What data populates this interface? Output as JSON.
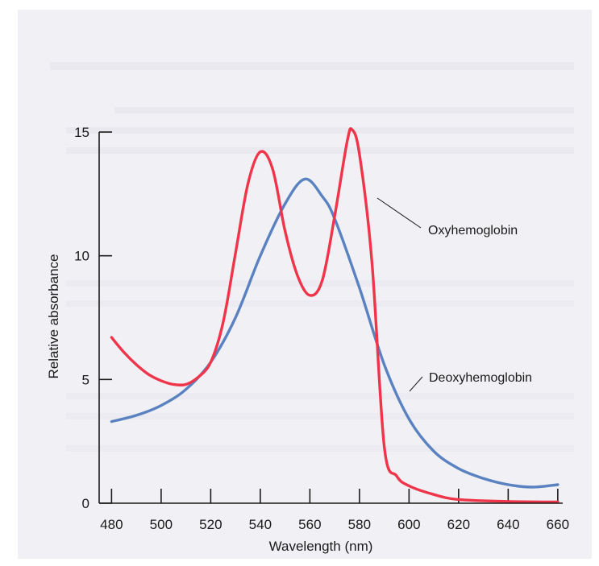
{
  "chart_data": {
    "type": "line",
    "title": "",
    "xlabel": "Wavelength (nm)",
    "ylabel": "Relative absorbance",
    "xlim": [
      475,
      662
    ],
    "ylim": [
      0,
      15
    ],
    "xticks": [
      480,
      500,
      520,
      540,
      560,
      580,
      600,
      620,
      640,
      660
    ],
    "yticks": [
      0,
      5,
      10,
      15
    ],
    "grid": false,
    "legend": "direct labels on curves",
    "series": [
      {
        "name": "Oxyhemoglobin",
        "color": "#f0344a",
        "points": [
          [
            480,
            6.7
          ],
          [
            485,
            6.1
          ],
          [
            490,
            5.6
          ],
          [
            495,
            5.2
          ],
          [
            500,
            4.95
          ],
          [
            505,
            4.8
          ],
          [
            510,
            4.8
          ],
          [
            515,
            5.1
          ],
          [
            520,
            5.7
          ],
          [
            525,
            7.3
          ],
          [
            530,
            10.1
          ],
          [
            535,
            12.9
          ],
          [
            540,
            14.2
          ],
          [
            545,
            13.5
          ],
          [
            550,
            11.0
          ],
          [
            555,
            9.2
          ],
          [
            560,
            8.4
          ],
          [
            565,
            9.0
          ],
          [
            570,
            11.6
          ],
          [
            575,
            14.6
          ],
          [
            577,
            15.1
          ],
          [
            580,
            14.1
          ],
          [
            585,
            9.8
          ],
          [
            590,
            2.3
          ],
          [
            595,
            1.1
          ],
          [
            600,
            0.7
          ],
          [
            610,
            0.35
          ],
          [
            620,
            0.15
          ],
          [
            640,
            0.07
          ],
          [
            660,
            0.05
          ]
        ]
      },
      {
        "name": "Deoxyhemoglobin",
        "color": "#5a82c0",
        "points": [
          [
            480,
            3.3
          ],
          [
            490,
            3.55
          ],
          [
            500,
            3.95
          ],
          [
            510,
            4.6
          ],
          [
            520,
            5.7
          ],
          [
            530,
            7.5
          ],
          [
            540,
            10.0
          ],
          [
            550,
            12.1
          ],
          [
            558,
            13.1
          ],
          [
            565,
            12.4
          ],
          [
            570,
            11.5
          ],
          [
            580,
            8.7
          ],
          [
            590,
            5.6
          ],
          [
            600,
            3.4
          ],
          [
            610,
            2.1
          ],
          [
            620,
            1.4
          ],
          [
            630,
            1.0
          ],
          [
            640,
            0.75
          ],
          [
            650,
            0.65
          ],
          [
            660,
            0.75
          ]
        ]
      }
    ]
  }
}
